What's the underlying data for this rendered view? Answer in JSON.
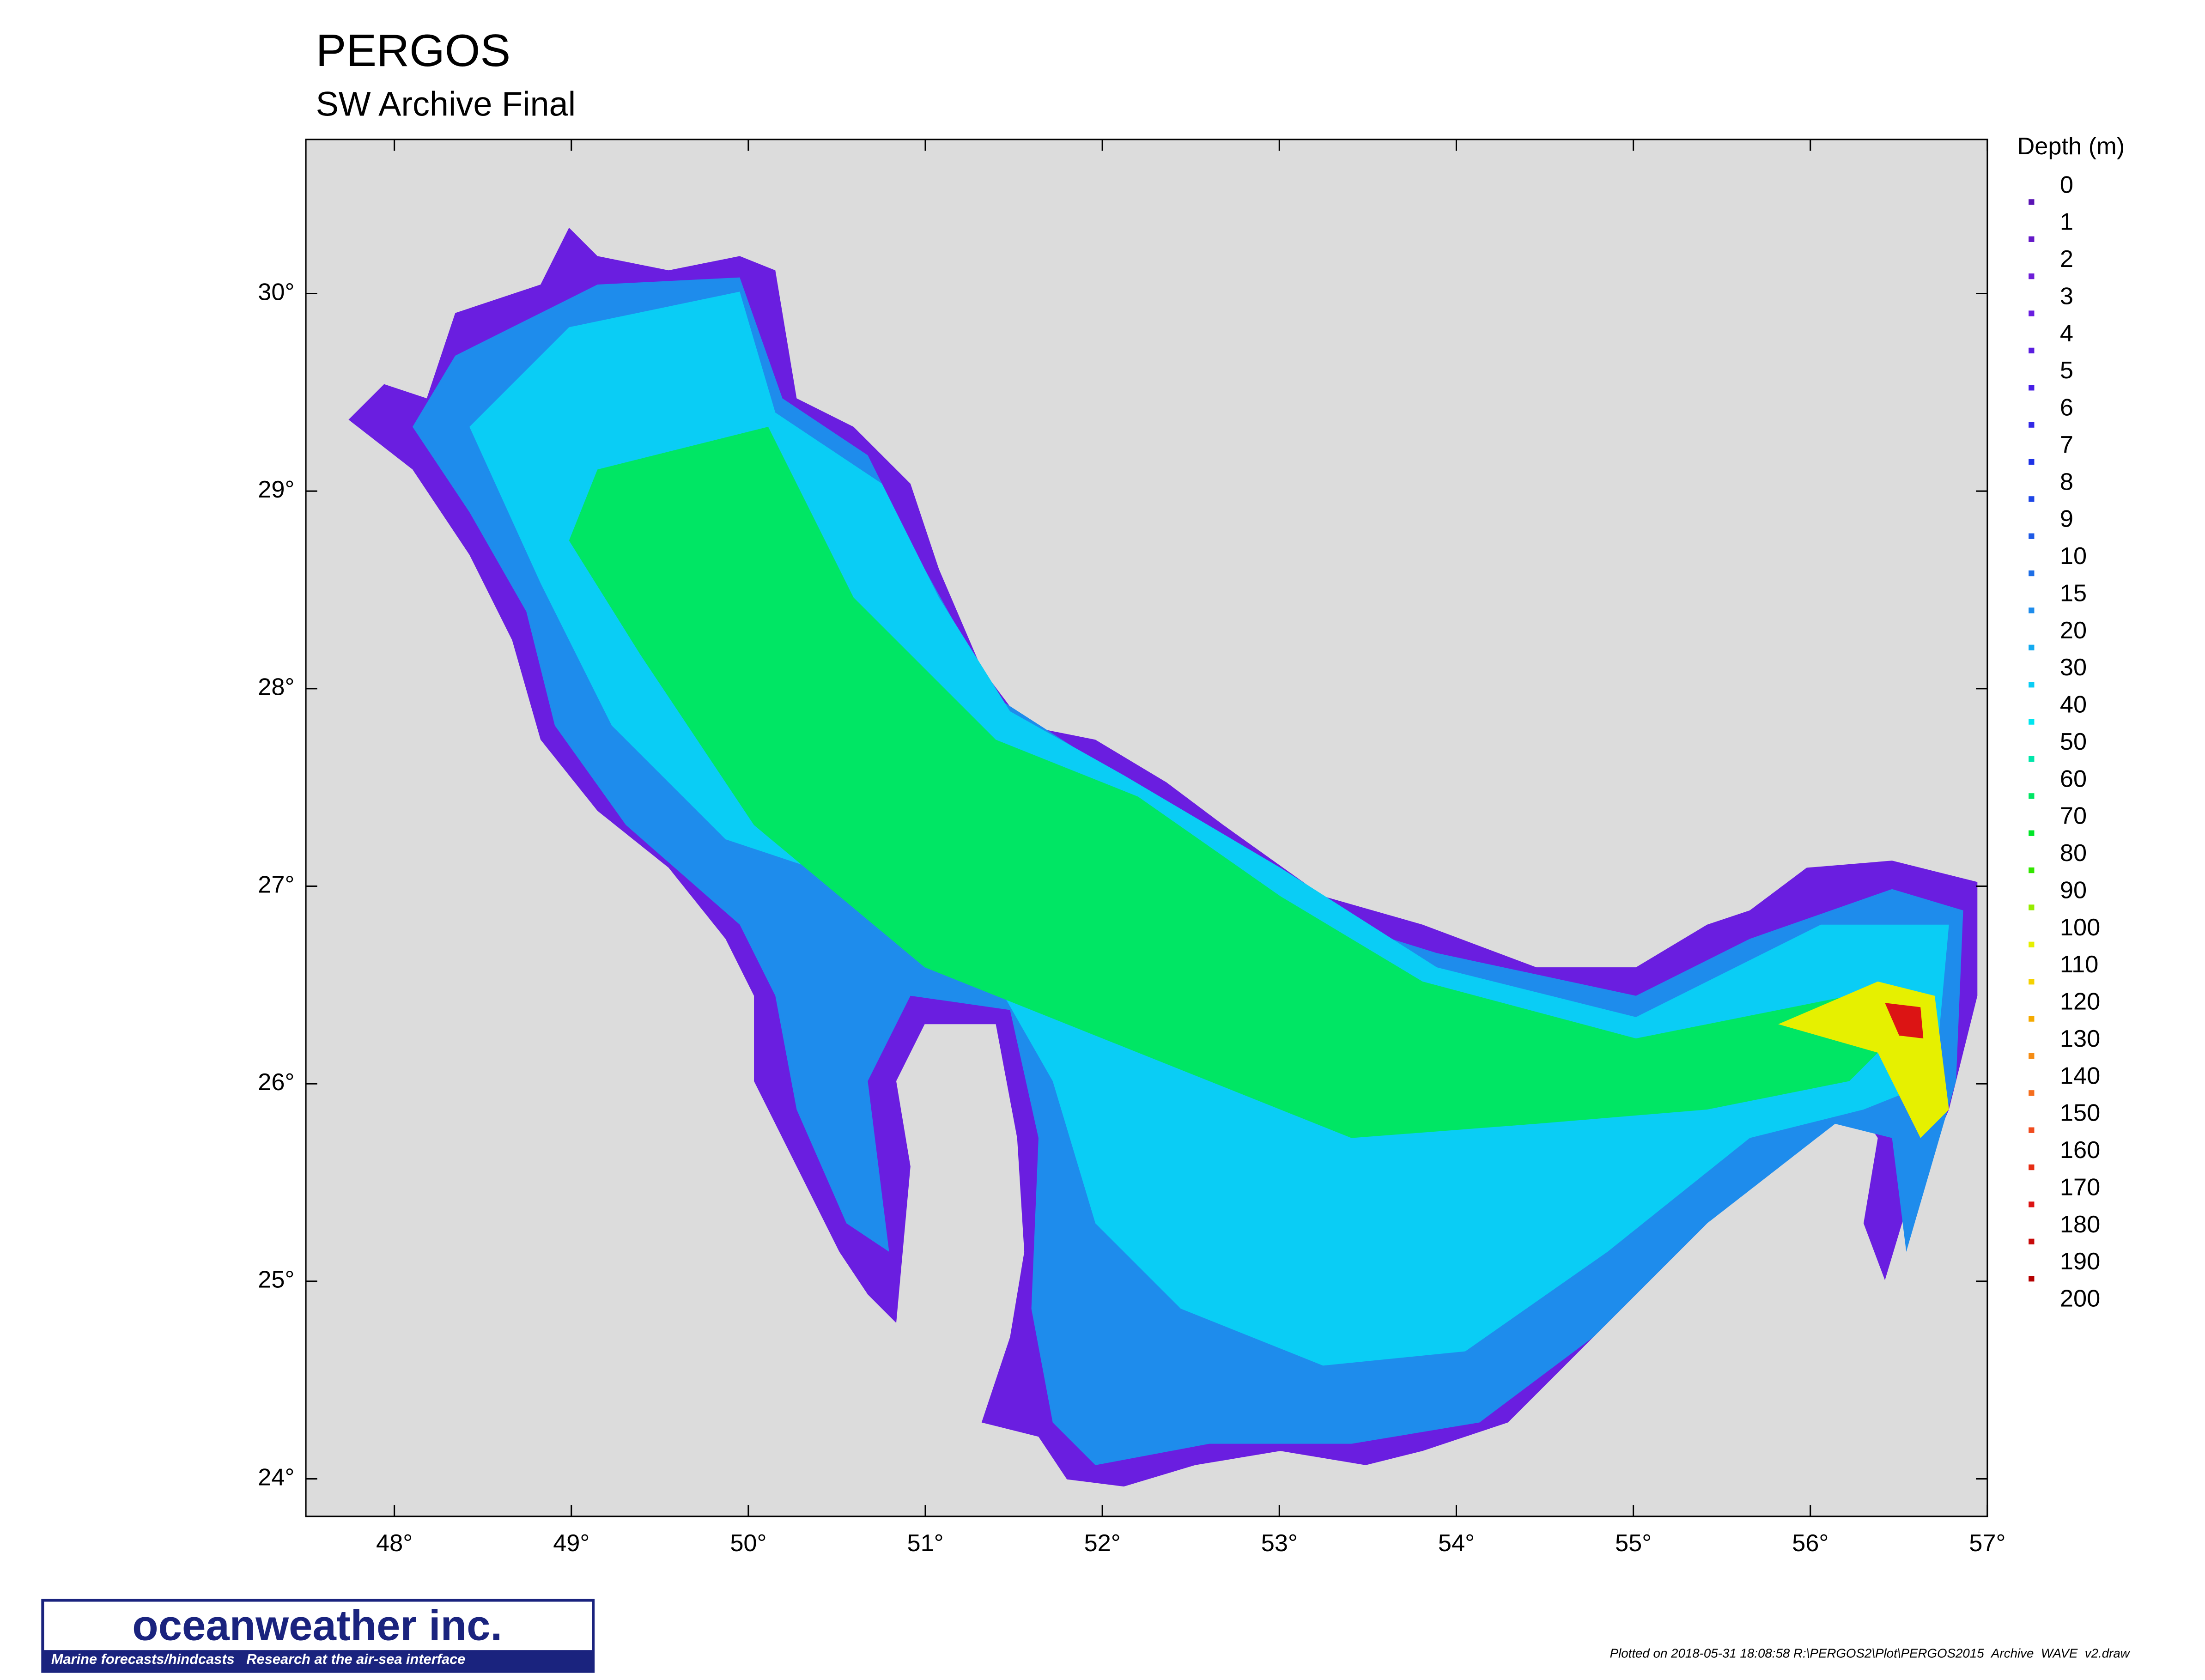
{
  "header": {
    "title": "PERGOS",
    "subtitle": "SW Archive Final"
  },
  "map": {
    "xlim": [
      47.5,
      57.0
    ],
    "ylim": [
      23.81,
      30.78
    ],
    "xticks": [
      {
        "value": 48,
        "label": "48°"
      },
      {
        "value": 49,
        "label": "49°"
      },
      {
        "value": 50,
        "label": "50°"
      },
      {
        "value": 51,
        "label": "51°"
      },
      {
        "value": 52,
        "label": "52°"
      },
      {
        "value": 53,
        "label": "53°"
      },
      {
        "value": 54,
        "label": "54°"
      },
      {
        "value": 55,
        "label": "55°"
      },
      {
        "value": 56,
        "label": "56°"
      },
      {
        "value": 57,
        "label": "57°"
      }
    ],
    "yticks": [
      {
        "value": 24,
        "label": "24°"
      },
      {
        "value": 25,
        "label": "25°"
      },
      {
        "value": 26,
        "label": "26°"
      },
      {
        "value": 27,
        "label": "27°"
      },
      {
        "value": 28,
        "label": "28°"
      },
      {
        "value": 29,
        "label": "29°"
      },
      {
        "value": 30,
        "label": "30°"
      }
    ]
  },
  "legend": {
    "title": "Depth (m)",
    "labels": [
      0,
      1,
      2,
      3,
      4,
      5,
      6,
      7,
      8,
      9,
      10,
      15,
      20,
      30,
      40,
      50,
      60,
      70,
      80,
      90,
      100,
      110,
      120,
      130,
      140,
      150,
      160,
      170,
      180,
      190,
      200
    ],
    "colors": [
      "#5a14b4",
      "#6419c8",
      "#6e1ed8",
      "#6a1ee0",
      "#5a1ee0",
      "#461ee6",
      "#3228e6",
      "#1e32e6",
      "#1e46e6",
      "#1e5ae6",
      "#1e6ee6",
      "#1e8cec",
      "#14aaf0",
      "#0acdf5",
      "#00e6f0",
      "#00e6aa",
      "#00e664",
      "#00e628",
      "#32e600",
      "#96ec00",
      "#e6f000",
      "#f5d200",
      "#f5aa00",
      "#f58c14",
      "#f56e1e",
      "#f04b1e",
      "#e62d14",
      "#dc1414",
      "#c80a0a",
      "#b40000"
    ]
  },
  "footer": {
    "logo": "oceanweather inc.",
    "tagline": "Marine forecasts/hindcasts   Research at the air-sea interface",
    "note": "Plotted on 2018-05-31 18:08:58 R:\\PERGOS2\\Plot\\PERGOS2015_Archive_WAVE_v2.draw"
  }
}
